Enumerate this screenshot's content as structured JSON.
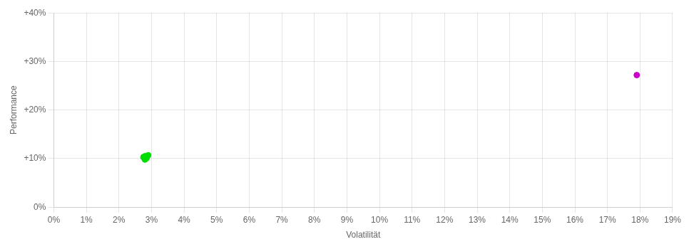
{
  "chart_data": {
    "type": "scatter",
    "xlabel": "Volatilität",
    "ylabel": "Performance",
    "xlim": [
      0.0,
      0.19
    ],
    "ylim": [
      0.0,
      0.4
    ],
    "xticks": [
      {
        "value": 0.0,
        "label": "0%"
      },
      {
        "value": 0.01,
        "label": "1%"
      },
      {
        "value": 0.02,
        "label": "2%"
      },
      {
        "value": 0.03,
        "label": "3%"
      },
      {
        "value": 0.04,
        "label": "4%"
      },
      {
        "value": 0.05,
        "label": "5%"
      },
      {
        "value": 0.06,
        "label": "6%"
      },
      {
        "value": 0.07,
        "label": "7%"
      },
      {
        "value": 0.08,
        "label": "8%"
      },
      {
        "value": 0.09,
        "label": "9%"
      },
      {
        "value": 0.1,
        "label": "10%"
      },
      {
        "value": 0.11,
        "label": "11%"
      },
      {
        "value": 0.12,
        "label": "12%"
      },
      {
        "value": 0.13,
        "label": "13%"
      },
      {
        "value": 0.14,
        "label": "14%"
      },
      {
        "value": 0.15,
        "label": "15%"
      },
      {
        "value": 0.16,
        "label": "16%"
      },
      {
        "value": 0.17,
        "label": "17%"
      },
      {
        "value": 0.18,
        "label": "18%"
      },
      {
        "value": 0.19,
        "label": "19%"
      }
    ],
    "yticks": [
      {
        "value": 0.0,
        "label": "0%"
      },
      {
        "value": 0.1,
        "label": "+10%"
      },
      {
        "value": 0.2,
        "label": "+20%"
      },
      {
        "value": 0.3,
        "label": "+30%"
      },
      {
        "value": 0.4,
        "label": "+40%"
      }
    ],
    "grid": true,
    "series": [
      {
        "color": "#00dd00",
        "x": [
          0.028,
          0.028,
          0.0285,
          0.0275,
          0.028,
          0.029,
          0.028,
          0.0285
        ],
        "values": [
          0.098,
          0.1,
          0.101,
          0.103,
          0.105,
          0.107,
          0.099,
          0.104
        ]
      },
      {
        "color": "#cc00cc",
        "x": [
          0.179
        ],
        "values": [
          0.272
        ]
      }
    ]
  }
}
